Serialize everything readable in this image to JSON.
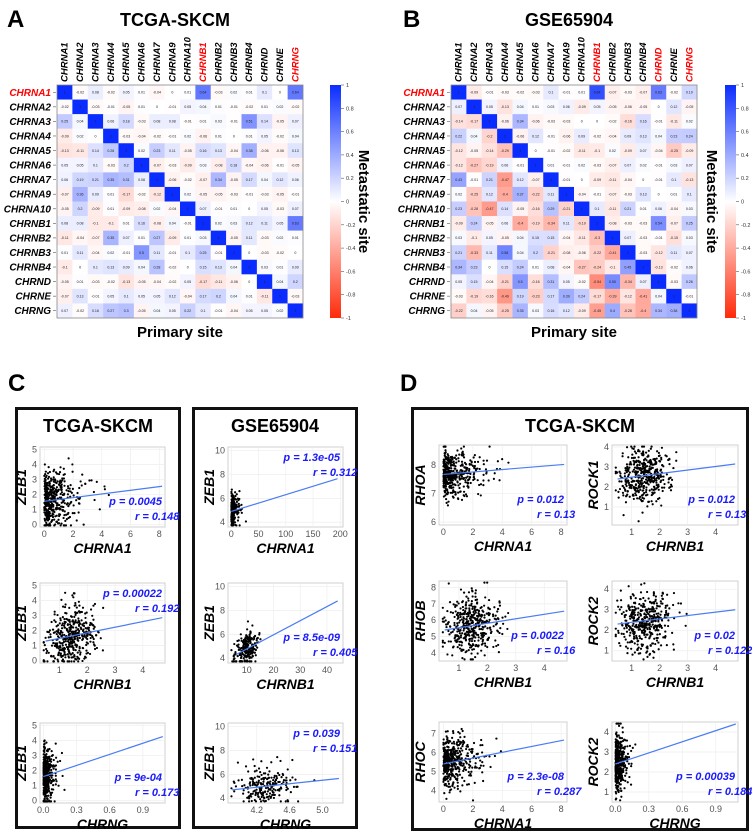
{
  "panels": {
    "a": "A",
    "b": "B",
    "c": "C",
    "d": "D"
  },
  "colors": {
    "pos": "#0a2cff",
    "neg": "#ff2a0a",
    "highlight": "#ff0000",
    "fit": "#4a7cf5",
    "annot": "#1a1aff"
  },
  "chart_data": [
    {
      "type": "heatmap",
      "id": "A",
      "title": "TCGA-SKCM",
      "xlabel": "Primary site",
      "ylabel": "Metastatic site",
      "genes": [
        "CHRNA1",
        "CHRNA2",
        "CHRNA3",
        "CHRNA4",
        "CHRNA5",
        "CHRNA6",
        "CHRNA7",
        "CHRNA9",
        "CHRNA10",
        "CHRNB1",
        "CHRNB2",
        "CHRNB3",
        "CHRNB4",
        "CHRND",
        "CHRNE",
        "CHRNG"
      ],
      "highlight_cols": [
        "CHRNB1",
        "CHRNG"
      ],
      "highlight_rows": [
        "CHRNA1"
      ],
      "colorbar_ticks": [
        "1",
        "0.8",
        "0.6",
        "0.4",
        "0.2",
        "0",
        "-0.2",
        "-0.4",
        "-0.6",
        "-0.8",
        "-1"
      ],
      "values": [
        [
          1,
          -0.02,
          0.08,
          -0.02,
          0.05,
          0.01,
          -0.04,
          0,
          0.01,
          0.64,
          -0.03,
          0.02,
          0.01,
          0.1,
          0,
          0.64
        ],
        [
          -0.02,
          1,
          -0.03,
          -0.01,
          -0.05,
          0.01,
          0,
          -0.01,
          0.05,
          0.04,
          0.01,
          -0.01,
          -0.02,
          0.01,
          0.02,
          -0.02
        ],
        [
          0.25,
          0.04,
          1,
          0.06,
          0.18,
          -0.03,
          0.08,
          0.08,
          -0.01,
          0.01,
          0.03,
          -0.01,
          0.51,
          0.14,
          -0.05,
          0.07
        ],
        [
          -0.09,
          0.02,
          0,
          1,
          -0.03,
          -0.04,
          -0.02,
          -0.01,
          0.02,
          -0.06,
          0.01,
          0,
          0.01,
          0.05,
          -0.02,
          0.04
        ],
        [
          -0.13,
          -0.11,
          0.14,
          0.26,
          1,
          0.02,
          0.23,
          0.11,
          -0.05,
          0.16,
          0.13,
          -0.04,
          0.38,
          -0.06,
          -0.06,
          0.13
        ],
        [
          0.05,
          0.05,
          0.1,
          -0.03,
          0.2,
          1,
          -0.07,
          -0.03,
          -0.09,
          0.03,
          -0.08,
          0.18,
          -0.04,
          -0.06,
          -0.01,
          -0.05
        ],
        [
          0.06,
          0.19,
          0.21,
          0.35,
          0.31,
          0.08,
          1,
          -0.06,
          -0.02,
          -0.07,
          0.34,
          -0.05,
          0.17,
          0.04,
          0.12,
          0.06
        ],
        [
          -0.07,
          0.36,
          0.09,
          0.01,
          -0.17,
          -0.02,
          -0.12,
          1,
          0.02,
          -0.05,
          -0.05,
          -0.03,
          -0.01,
          -0.03,
          -0.05,
          -0.01
        ],
        [
          -0.05,
          0.2,
          -0.09,
          0.01,
          -0.09,
          -0.08,
          0.02,
          -0.04,
          1,
          0.07,
          -0.01,
          0.01,
          0,
          0.05,
          -0.03,
          0.07
        ],
        [
          0.08,
          0.08,
          -0.1,
          -0.1,
          0.01,
          0.16,
          -0.08,
          0.04,
          -0.01,
          1,
          0.02,
          0.03,
          0.12,
          0.11,
          0.05,
          0.63
        ],
        [
          -0.11,
          -0.04,
          -0.07,
          0.35,
          0.07,
          0.01,
          0.27,
          -0.09,
          0.01,
          0.03,
          1,
          -0.05,
          0.11,
          -0.03,
          0.02,
          0.01
        ],
        [
          0.01,
          0.11,
          -0.04,
          0.02,
          -0.01,
          0.5,
          0.11,
          -0.01,
          0.1,
          0.25,
          -0.01,
          1,
          0,
          -0.03,
          -0.02,
          0
        ],
        [
          -0.1,
          0,
          0.1,
          0.13,
          0.09,
          0.04,
          0.28,
          -0.02,
          0,
          0.15,
          0.13,
          0.04,
          1,
          0.03,
          0.01,
          0.09
        ],
        [
          -0.05,
          0.01,
          -0.03,
          -0.02,
          -0.13,
          -0.05,
          -0.04,
          -0.02,
          0.05,
          -0.17,
          -0.11,
          -0.06,
          0,
          1,
          0.04,
          0.2
        ],
        [
          -0.07,
          0.13,
          -0.01,
          0.05,
          0.1,
          0.05,
          0.05,
          0.12,
          -0.04,
          0.17,
          0.2,
          0.04,
          0.01,
          -0.11,
          1,
          -0.03
        ],
        [
          0.07,
          -0.02,
          0.16,
          0.27,
          0.3,
          -0.05,
          0.04,
          0.05,
          0.22,
          0.1,
          -0.01,
          -0.04,
          0.05,
          0.05,
          0.02,
          1
        ]
      ]
    },
    {
      "type": "heatmap",
      "id": "B",
      "title": "GSE65904",
      "xlabel": "Primary site",
      "ylabel": "Metastatic site",
      "genes": [
        "CHRNA1",
        "CHRNA2",
        "CHRNA3",
        "CHRNA4",
        "CHRNA5",
        "CHRNA6",
        "CHRNA7",
        "CHRNA9",
        "CHRNA10",
        "CHRNB1",
        "CHRNB2",
        "CHRNB3",
        "CHRNB4",
        "CHRND",
        "CHRNE",
        "CHRNG"
      ],
      "highlight_cols": [
        "CHRNB1",
        "CHRND",
        "CHRNG"
      ],
      "highlight_rows": [
        "CHRNA1"
      ],
      "colorbar_ticks": [
        "1",
        "0.8",
        "0.6",
        "0.4",
        "0.2",
        "0",
        "-0.2",
        "-0.4",
        "-0.6",
        "-0.8",
        "-1"
      ],
      "values": [
        [
          1,
          -0.09,
          -0.01,
          -0.03,
          -0.02,
          -0.03,
          0.1,
          -0.01,
          0.01,
          0.84,
          -0.07,
          -0.03,
          -0.07,
          0.63,
          -0.02,
          0.19
        ],
        [
          0.07,
          1,
          0.05,
          -0.13,
          0.04,
          0.01,
          0.03,
          0.06,
          -0.09,
          0.05,
          -0.05,
          -0.06,
          -0.05,
          0,
          0.12,
          -0.05
        ],
        [
          -0.14,
          -0.17,
          1,
          -0.06,
          0.34,
          -0.06,
          -0.03,
          -0.03,
          0,
          0,
          -0.02,
          -0.16,
          0.16,
          -0.01,
          -0.11,
          0.02
        ],
        [
          0.22,
          0.04,
          -0.2,
          1,
          -0.06,
          0.12,
          -0.01,
          -0.06,
          0.09,
          -0.02,
          -0.04,
          0.09,
          0.13,
          0.04,
          0.23,
          0.24
        ],
        [
          -0.12,
          -0.05,
          -0.14,
          -0.29,
          1,
          0,
          -0.01,
          -0.02,
          -0.11,
          -0.1,
          0.02,
          -0.09,
          0.07,
          -0.04,
          -0.25,
          -0.09
        ],
        [
          -0.12,
          -0.27,
          -0.19,
          0.06,
          -0.01,
          1,
          0.01,
          -0.01,
          0.02,
          -0.03,
          -0.07,
          0.07,
          0.02,
          -0.01,
          0.03,
          0.07
        ],
        [
          0.43,
          -0.01,
          0.21,
          -0.47,
          0.12,
          -0.07,
          1,
          -0.01,
          0,
          -0.09,
          -0.11,
          -0.04,
          0,
          -0.01,
          0.1,
          -0.13
        ],
        [
          0.02,
          -0.25,
          0.12,
          -0.4,
          0.37,
          -0.22,
          0.11,
          1,
          -0.04,
          -0.01,
          -0.07,
          -0.03,
          0.13,
          0,
          0.01,
          0.1
        ],
        [
          0.23,
          -0.28,
          -0.47,
          0.14,
          -0.05,
          -0.16,
          0.29,
          -0.21,
          1,
          0.1,
          -0.11,
          0.21,
          0.01,
          0.06,
          -0.04,
          0.03
        ],
        [
          -0.09,
          0.24,
          -0.05,
          0.06,
          -0.4,
          -0.19,
          -0.34,
          0.11,
          -0.19,
          1,
          -0.08,
          -0.03,
          -0.03,
          0.54,
          -0.07,
          0.25
        ],
        [
          0.03,
          -0.1,
          0.05,
          -0.05,
          0.04,
          0.15,
          0.15,
          -0.04,
          -0.11,
          -0.3,
          1,
          0.07,
          -0.03,
          -0.01,
          -0.15,
          0.03
        ],
        [
          0.21,
          -0.33,
          0.11,
          0.58,
          0.04,
          0.2,
          -0.21,
          -0.08,
          -0.06,
          -0.22,
          -0.41,
          1,
          -0.03,
          -0.12,
          0.11,
          0.07
        ],
        [
          0.34,
          0.23,
          0,
          0.15,
          0.24,
          0.01,
          0.08,
          -0.04,
          -0.27,
          -0.24,
          -0.1,
          0.45,
          1,
          -0.13,
          -0.02,
          0.06
        ],
        [
          0.05,
          0.15,
          -0.04,
          -0.21,
          0.5,
          -0.16,
          0.31,
          0.05,
          -0.02,
          -0.54,
          0.55,
          -0.34,
          0.07,
          1,
          -0.03,
          0.26
        ],
        [
          -0.03,
          -0.19,
          -0.16,
          -0.49,
          0.19,
          -0.23,
          0.17,
          0.39,
          0.24,
          -0.17,
          -0.39,
          -0.12,
          -0.41,
          0.04,
          1,
          -0.01
        ],
        [
          -0.22,
          0.04,
          -0.05,
          -0.25,
          0.35,
          0.03,
          0.16,
          0.12,
          -0.09,
          -0.45,
          0.4,
          -0.28,
          -0.4,
          0.34,
          0.38,
          1
        ]
      ]
    },
    {
      "type": "scatter",
      "group": "C-TCGA",
      "xlabel": "CHRNA1",
      "ylabel": "ZEB1",
      "xlim": [
        -0.3,
        8.4
      ],
      "ylim": [
        -0.15,
        5.15
      ],
      "xticks": [
        "0",
        "2",
        "4",
        "6",
        "8"
      ],
      "yticks": [
        "0",
        "1",
        "2",
        "3",
        "4",
        "5"
      ],
      "fit": [
        [
          0,
          1.55
        ],
        [
          8.2,
          2.55
        ]
      ],
      "p": "p = 0.0045",
      "r": "r = 0.148",
      "annot_pos": "bottom-right",
      "cloud": {
        "n": 420,
        "x_dist": "exp",
        "x_loc": 0,
        "x_scale": 0.8,
        "y_sd": 0.95
      }
    },
    {
      "type": "scatter",
      "group": "C-TCGA",
      "xlabel": "CHRNB1",
      "ylabel": "ZEB1",
      "xlim": [
        0.3,
        4.8
      ],
      "ylim": [
        -0.15,
        5.15
      ],
      "xticks": [
        "1",
        "2",
        "3",
        "4"
      ],
      "yticks": [
        "0",
        "1",
        "2",
        "3",
        "4",
        "5"
      ],
      "fit": [
        [
          0.5,
          1.3
        ],
        [
          4.7,
          2.85
        ]
      ],
      "p": "p = 0.00022",
      "r": "r = 0.192",
      "annot_pos": "top-right",
      "cloud": {
        "n": 420,
        "x_dist": "normal",
        "x_loc": 1.45,
        "x_scale": 0.45,
        "y_sd": 0.95
      }
    },
    {
      "type": "scatter",
      "group": "C-TCGA",
      "xlabel": "CHRNG",
      "ylabel": "ZEB1",
      "xlim": [
        -0.03,
        1.1
      ],
      "ylim": [
        -0.15,
        5.15
      ],
      "xticks": [
        "0.0",
        "0.3",
        "0.6",
        "0.9"
      ],
      "yticks": [
        "0",
        "1",
        "2",
        "3",
        "4",
        "5"
      ],
      "fit": [
        [
          0,
          1.6
        ],
        [
          1.08,
          4.25
        ]
      ],
      "p": "p = 9e-04",
      "r": "r = 0.173",
      "annot_pos": "bottom-right",
      "cloud": {
        "n": 420,
        "x_dist": "exp",
        "x_loc": 0,
        "x_scale": 0.03,
        "y_sd": 0.95
      }
    },
    {
      "type": "scatter",
      "group": "C-GSE",
      "xlabel": "CHRNA1",
      "ylabel": "ZEB1",
      "xlim": [
        -6,
        205
      ],
      "ylim": [
        3.6,
        10.3
      ],
      "xticks": [
        "0",
        "50",
        "100",
        "150",
        "200"
      ],
      "yticks": [
        "4",
        "6",
        "8",
        "10"
      ],
      "fit": [
        [
          0,
          4.9
        ],
        [
          195,
          7.65
        ]
      ],
      "p": "p = 1.3e-05",
      "r": "r = 0.312",
      "annot_pos": "top-right",
      "cloud": {
        "n": 210,
        "x_dist": "exp",
        "x_loc": 0,
        "x_scale": 4,
        "y_sd": 0.7
      }
    },
    {
      "type": "scatter",
      "group": "C-GSE",
      "xlabel": "CHRNB1",
      "ylabel": "ZEB1",
      "xlim": [
        3,
        46
      ],
      "ylim": [
        3.6,
        10.3
      ],
      "xticks": [
        "10",
        "20",
        "30",
        "40"
      ],
      "yticks": [
        "4",
        "6",
        "8",
        "10"
      ],
      "fit": [
        [
          6,
          4.3
        ],
        [
          44,
          8.8
        ]
      ],
      "p": "p = 8.5e-09",
      "r": "r = 0.405",
      "annot_pos": "bottom-right",
      "cloud": {
        "n": 210,
        "x_dist": "normal",
        "x_loc": 10,
        "x_scale": 2.2,
        "y_sd": 0.7
      }
    },
    {
      "type": "scatter",
      "group": "C-GSE",
      "xlabel": "CHRNG",
      "ylabel": "ZEB1",
      "xlim": [
        3.85,
        5.25
      ],
      "ylim": [
        3.6,
        10.3
      ],
      "xticks": [
        "4.2",
        "4.6",
        "5.0"
      ],
      "yticks": [
        "4",
        "6",
        "8",
        "10"
      ],
      "fit": [
        [
          3.9,
          4.7
        ],
        [
          5.2,
          5.65
        ]
      ],
      "p": "p = 0.039",
      "r": "r = 0.151",
      "annot_pos": "top-right",
      "cloud": {
        "n": 210,
        "x_dist": "normal",
        "x_loc": 4.3,
        "x_scale": 0.16,
        "y_sd": 0.8
      }
    },
    {
      "type": "scatter",
      "group": "D-TCGA",
      "xlabel": "CHRNA1",
      "ylabel": "RHOA",
      "xlim": [
        -0.3,
        8.4
      ],
      "ylim": [
        5.9,
        8.7
      ],
      "xticks": [
        "0",
        "2",
        "4",
        "6",
        "8"
      ],
      "yticks": [
        "6",
        "7",
        "8"
      ],
      "fit": [
        [
          0,
          7.67
        ],
        [
          8.2,
          8.02
        ]
      ],
      "p": "p = 0.012",
      "r": "r = 0.13",
      "annot_pos": "bottom-right",
      "cloud": {
        "n": 420,
        "x_dist": "exp",
        "x_loc": 0,
        "x_scale": 0.8,
        "y_sd": 0.4
      }
    },
    {
      "type": "scatter",
      "group": "D-TCGA",
      "xlabel": "CHRNB1",
      "ylabel": "ROCK1",
      "xlim": [
        0.3,
        4.8
      ],
      "ylim": [
        0.1,
        4.1
      ],
      "xticks": [
        "1",
        "2",
        "3",
        "4"
      ],
      "yticks": [
        "1",
        "2",
        "3",
        "4"
      ],
      "fit": [
        [
          0.5,
          2.4
        ],
        [
          4.7,
          3.15
        ]
      ],
      "p": "p = 0.012",
      "r": "r = 0.13",
      "annot_pos": "bottom-right",
      "cloud": {
        "n": 420,
        "x_dist": "normal",
        "x_loc": 1.45,
        "x_scale": 0.45,
        "y_sd": 0.7
      }
    },
    {
      "type": "scatter",
      "group": "D-TCGA",
      "xlabel": "CHRNB1",
      "ylabel": "RHOB",
      "xlim": [
        0.3,
        4.8
      ],
      "ylim": [
        3.5,
        8.4
      ],
      "xticks": [
        "1",
        "2",
        "3",
        "4"
      ],
      "yticks": [
        "4",
        "5",
        "6",
        "7",
        "8"
      ],
      "fit": [
        [
          0.5,
          5.4
        ],
        [
          4.7,
          6.55
        ]
      ],
      "p": "p = 0.0022",
      "r": "r = 0.16",
      "annot_pos": "bottom-right",
      "cloud": {
        "n": 420,
        "x_dist": "normal",
        "x_loc": 1.45,
        "x_scale": 0.45,
        "y_sd": 0.9
      }
    },
    {
      "type": "scatter",
      "group": "D-TCGA",
      "xlabel": "CHRNB1",
      "ylabel": "ROCK2",
      "xlim": [
        0.3,
        4.8
      ],
      "ylim": [
        0.5,
        4.4
      ],
      "xticks": [
        "1",
        "2",
        "3",
        "4"
      ],
      "yticks": [
        "1",
        "2",
        "3",
        "4"
      ],
      "fit": [
        [
          0.5,
          2.3
        ],
        [
          4.7,
          3.0
        ]
      ],
      "p": "p = 0.02",
      "r": "r = 0.122",
      "annot_pos": "bottom-right",
      "cloud": {
        "n": 420,
        "x_dist": "normal",
        "x_loc": 1.45,
        "x_scale": 0.45,
        "y_sd": 0.7
      }
    },
    {
      "type": "scatter",
      "group": "D-TCGA",
      "xlabel": "CHRNA1",
      "ylabel": "RHOC",
      "xlim": [
        -0.3,
        8.4
      ],
      "ylim": [
        3.4,
        7.6
      ],
      "xticks": [
        "0",
        "2",
        "4",
        "6",
        "8"
      ],
      "yticks": [
        "4",
        "5",
        "6",
        "7"
      ],
      "fit": [
        [
          0,
          5.4
        ],
        [
          8.2,
          6.65
        ]
      ],
      "p": "p = 2.3e-08",
      "r": "r = 0.287",
      "annot_pos": "bottom-right",
      "cloud": {
        "n": 420,
        "x_dist": "exp",
        "x_loc": 0,
        "x_scale": 0.8,
        "y_sd": 0.65
      }
    },
    {
      "type": "scatter",
      "group": "D-TCGA",
      "xlabel": "CHRNG",
      "ylabel": "ROCK2",
      "xlim": [
        -0.03,
        1.1
      ],
      "ylim": [
        0.5,
        4.5
      ],
      "xticks": [
        "0.0",
        "0.3",
        "0.6",
        "0.9"
      ],
      "yticks": [
        "1",
        "2",
        "3",
        "4"
      ],
      "fit": [
        [
          0,
          2.4
        ],
        [
          1.08,
          4.4
        ]
      ],
      "p": "p = 0.00039",
      "r": "r = 0.184",
      "annot_pos": "bottom-right",
      "cloud": {
        "n": 420,
        "x_dist": "exp",
        "x_loc": 0,
        "x_scale": 0.03,
        "y_sd": 0.7
      }
    }
  ],
  "boxes": {
    "c_left_title": "TCGA-SKCM",
    "c_right_title": "GSE65904",
    "d_title": "TCGA-SKCM"
  }
}
